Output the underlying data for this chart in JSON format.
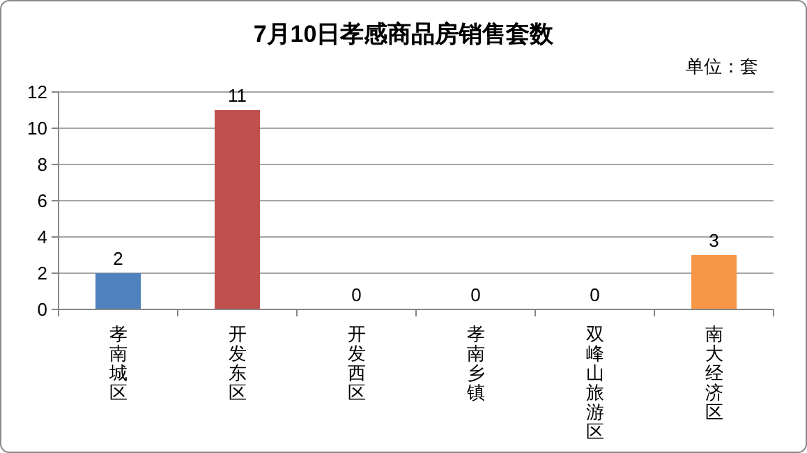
{
  "chart_data": {
    "type": "bar",
    "title": "7月10日孝感商品房销售套数",
    "annotations": [
      "单位：套"
    ],
    "categories": [
      "孝南城区",
      "开发东区",
      "开发西区",
      "孝南乡镇",
      "双峰山旅游区",
      "南大经济区"
    ],
    "values": [
      2,
      11,
      0,
      0,
      0,
      3
    ],
    "colors": [
      "#4f81bd",
      "#c0504d",
      "#9bbb59",
      "#8064a2",
      "#4bacc6",
      "#f79646"
    ],
    "ylim": [
      0,
      12
    ],
    "yticks": [
      0,
      2,
      4,
      6,
      8,
      10,
      12
    ],
    "grid": "y",
    "data_labels": true
  }
}
